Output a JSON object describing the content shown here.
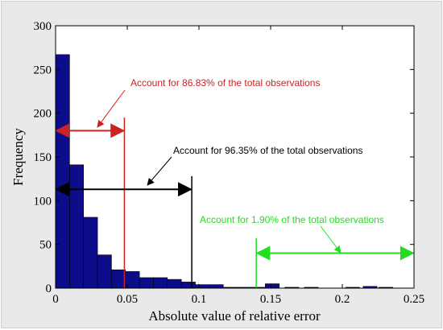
{
  "chart_data": {
    "type": "bar",
    "title": "",
    "xlabel": "Absolute value of relative error",
    "ylabel": "Frequency",
    "xlim": [
      0,
      0.25
    ],
    "ylim": [
      0,
      300
    ],
    "xticks": [
      "0",
      "0.05",
      "0.1",
      "0.15",
      "0.2",
      "0.25"
    ],
    "yticks": [
      "0",
      "50",
      "100",
      "150",
      "200",
      "250",
      "300"
    ],
    "bin_width": 0.00975,
    "bins": [
      {
        "x0": 0.0,
        "value": 267
      },
      {
        "x0": 0.00975,
        "value": 141
      },
      {
        "x0": 0.0195,
        "value": 81
      },
      {
        "x0": 0.02925,
        "value": 38
      },
      {
        "x0": 0.039,
        "value": 21
      },
      {
        "x0": 0.04875,
        "value": 19
      },
      {
        "x0": 0.0585,
        "value": 12
      },
      {
        "x0": 0.06825,
        "value": 12
      },
      {
        "x0": 0.078,
        "value": 10
      },
      {
        "x0": 0.08775,
        "value": 7
      },
      {
        "x0": 0.0975,
        "value": 4
      },
      {
        "x0": 0.10725,
        "value": 4
      },
      {
        "x0": 0.117,
        "value": 1
      },
      {
        "x0": 0.12675,
        "value": 1
      },
      {
        "x0": 0.1365,
        "value": 1
      },
      {
        "x0": 0.14625,
        "value": 5
      },
      {
        "x0": 0.1599,
        "value": 1
      },
      {
        "x0": 0.1735,
        "value": 1
      },
      {
        "x0": 0.2023,
        "value": 1
      },
      {
        "x0": 0.2145,
        "value": 2
      },
      {
        "x0": 0.2255,
        "value": 1
      }
    ],
    "bar_color": "#0d0d8c",
    "annotations": [
      {
        "text": "Account for 86.83% of the total observations",
        "color": "#cc2222",
        "x_cutoff": 0.048,
        "range": [
          0,
          0.048
        ],
        "arrow_y": 180,
        "line_top": 195
      },
      {
        "text": "Account for 96.35% of the total observations",
        "color": "#000000",
        "x_cutoff": 0.095,
        "range": [
          0,
          0.095
        ],
        "arrow_y": 113,
        "line_top": 128
      },
      {
        "text": "Account for 1.90% of the total observations",
        "color": "#22dd22",
        "x_cutoff": 0.14,
        "range": [
          0.14,
          0.25
        ],
        "arrow_y": 40,
        "line_top": 57
      }
    ]
  }
}
